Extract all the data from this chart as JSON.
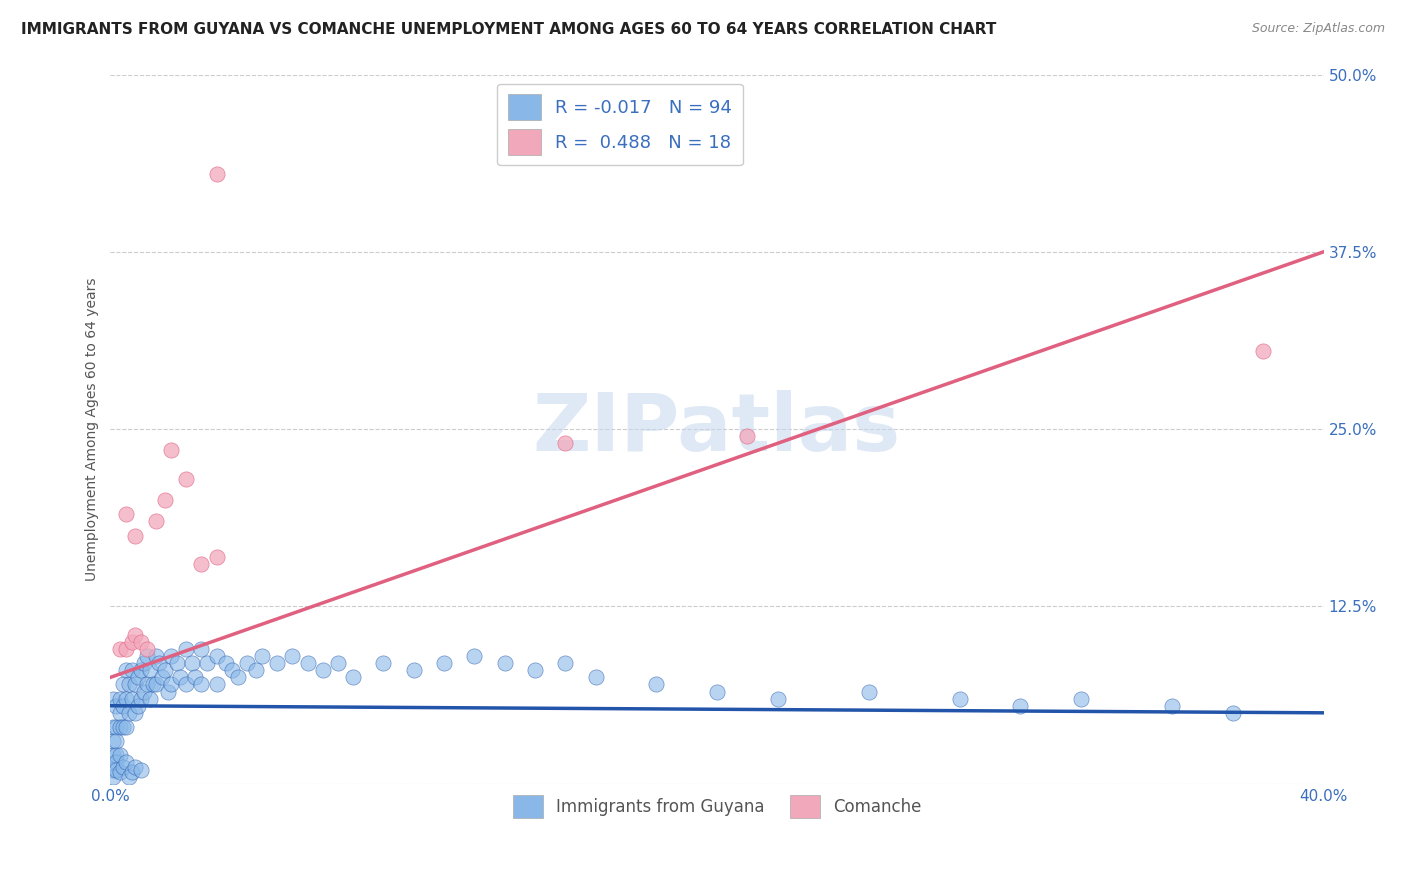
{
  "title": "IMMIGRANTS FROM GUYANA VS COMANCHE UNEMPLOYMENT AMONG AGES 60 TO 64 YEARS CORRELATION CHART",
  "source": "Source: ZipAtlas.com",
  "ylabel": "Unemployment Among Ages 60 to 64 years",
  "xlim": [
    0.0,
    0.4
  ],
  "ylim": [
    0.0,
    0.5
  ],
  "yticks": [
    0.0,
    0.125,
    0.25,
    0.375,
    0.5
  ],
  "ytick_labels": [
    "",
    "12.5%",
    "25.0%",
    "37.5%",
    "50.0%"
  ],
  "xticks": [
    0.0,
    0.4
  ],
  "xtick_labels": [
    "0.0%",
    "40.0%"
  ],
  "blue_R": -0.017,
  "blue_N": 94,
  "pink_R": 0.488,
  "pink_N": 18,
  "blue_color": "#89B8E8",
  "pink_color": "#F2A8BB",
  "blue_line_color": "#2255AA",
  "pink_line_color": "#E06080",
  "title_fontsize": 11,
  "axis_label_fontsize": 10,
  "tick_fontsize": 11,
  "background_color": "#FFFFFF",
  "grid_color": "#CCCCCC",
  "blue_trend_x": [
    0.0,
    0.4
  ],
  "blue_trend_y": [
    0.055,
    0.05
  ],
  "pink_trend_x": [
    0.0,
    0.4
  ],
  "pink_trend_y": [
    0.075,
    0.375
  ],
  "blue_x": [
    0.001,
    0.001,
    0.001,
    0.001,
    0.002,
    0.002,
    0.002,
    0.002,
    0.003,
    0.003,
    0.003,
    0.004,
    0.004,
    0.004,
    0.005,
    0.005,
    0.005,
    0.006,
    0.006,
    0.007,
    0.007,
    0.008,
    0.008,
    0.009,
    0.009,
    0.01,
    0.01,
    0.011,
    0.011,
    0.012,
    0.012,
    0.013,
    0.013,
    0.014,
    0.015,
    0.015,
    0.016,
    0.017,
    0.018,
    0.019,
    0.02,
    0.02,
    0.022,
    0.023,
    0.025,
    0.025,
    0.027,
    0.028,
    0.03,
    0.03,
    0.032,
    0.035,
    0.035,
    0.038,
    0.04,
    0.042,
    0.045,
    0.048,
    0.05,
    0.055,
    0.06,
    0.065,
    0.07,
    0.075,
    0.08,
    0.09,
    0.1,
    0.11,
    0.12,
    0.13,
    0.14,
    0.15,
    0.16,
    0.18,
    0.2,
    0.22,
    0.25,
    0.28,
    0.3,
    0.32,
    0.35,
    0.37,
    0.001,
    0.002,
    0.003,
    0.001,
    0.002,
    0.003,
    0.004,
    0.005,
    0.006,
    0.007,
    0.008,
    0.01
  ],
  "blue_y": [
    0.06,
    0.04,
    0.03,
    0.02,
    0.055,
    0.04,
    0.03,
    0.02,
    0.06,
    0.05,
    0.04,
    0.07,
    0.055,
    0.04,
    0.08,
    0.06,
    0.04,
    0.07,
    0.05,
    0.08,
    0.06,
    0.07,
    0.05,
    0.075,
    0.055,
    0.08,
    0.06,
    0.085,
    0.065,
    0.09,
    0.07,
    0.08,
    0.06,
    0.07,
    0.09,
    0.07,
    0.085,
    0.075,
    0.08,
    0.065,
    0.09,
    0.07,
    0.085,
    0.075,
    0.095,
    0.07,
    0.085,
    0.075,
    0.095,
    0.07,
    0.085,
    0.09,
    0.07,
    0.085,
    0.08,
    0.075,
    0.085,
    0.08,
    0.09,
    0.085,
    0.09,
    0.085,
    0.08,
    0.085,
    0.075,
    0.085,
    0.08,
    0.085,
    0.09,
    0.085,
    0.08,
    0.085,
    0.075,
    0.07,
    0.065,
    0.06,
    0.065,
    0.06,
    0.055,
    0.06,
    0.055,
    0.05,
    0.01,
    0.015,
    0.02,
    0.005,
    0.01,
    0.008,
    0.012,
    0.015,
    0.005,
    0.008,
    0.012,
    0.01
  ],
  "pink_x": [
    0.003,
    0.005,
    0.007,
    0.008,
    0.01,
    0.012,
    0.015,
    0.018,
    0.02,
    0.025,
    0.03,
    0.035,
    0.15,
    0.005,
    0.008,
    0.035,
    0.21,
    0.38
  ],
  "pink_y": [
    0.095,
    0.095,
    0.1,
    0.105,
    0.1,
    0.095,
    0.185,
    0.2,
    0.235,
    0.215,
    0.155,
    0.16,
    0.24,
    0.19,
    0.175,
    0.43,
    0.245,
    0.305
  ]
}
